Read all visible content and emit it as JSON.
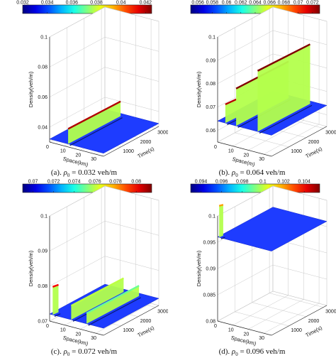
{
  "chart_data": [
    {
      "type": "surface3d",
      "caption_prefix": "(a).",
      "caption_symbol": "ρ",
      "caption_subscript": "0",
      "caption_value": " = 0.032 veh/m",
      "colorbar_ticks": [
        "0.032",
        "0.034",
        "0.036",
        "0.038",
        "0.04",
        "0.042"
      ],
      "colorbar_range": [
        0.032,
        0.0425
      ],
      "z_ticks": [
        "0.04",
        "0.06",
        "0.08",
        "0.1"
      ],
      "z_range": [
        0.03,
        0.1
      ],
      "x_ticks": [
        "0",
        "10",
        "20",
        "30"
      ],
      "y_ticks": [
        "1000",
        "2000",
        "3000"
      ],
      "xlabel": "Space(km)",
      "ylabel": "Time(s)",
      "zlabel": "Density(veh/m)",
      "base_density": 0.032,
      "ridges": [
        {
          "space": 12,
          "time_end": 3000,
          "peak": 0.042
        }
      ]
    },
    {
      "type": "surface3d",
      "caption_prefix": "(b).",
      "caption_symbol": "ρ",
      "caption_subscript": "0",
      "caption_value": " = 0.064 veh/m",
      "colorbar_ticks": [
        "0.056",
        "0.058",
        "0.06",
        "0.062",
        "0.064",
        "0.066",
        "0.068",
        "0.07",
        "0.072"
      ],
      "colorbar_range": [
        0.055,
        0.073
      ],
      "z_ticks": [
        "0.06",
        "0.07",
        "0.08",
        "0.09",
        "0.1"
      ],
      "z_range": [
        0.055,
        0.1
      ],
      "x_ticks": [
        "0",
        "10",
        "20",
        "30"
      ],
      "y_ticks": [
        "1000",
        "2000",
        "3000"
      ],
      "xlabel": "Space(m)",
      "ylabel": "Time(s)",
      "zlabel": "Density(veh/m)",
      "base_density": 0.064,
      "ridges": [
        {
          "space": 5,
          "time_end": 600,
          "peak": 0.072
        },
        {
          "space": 12,
          "time_end": 3000,
          "peak": 0.08
        },
        {
          "space": 26,
          "time_end": 3000,
          "peak": 0.09
        }
      ]
    },
    {
      "type": "surface3d",
      "caption_prefix": "(c).",
      "caption_symbol": "ρ",
      "caption_subscript": "0",
      "caption_value": " = 0.072 veh/m",
      "colorbar_ticks": [
        "0.07",
        "0.072",
        "0.074",
        "0.076",
        "0.078",
        "0.08"
      ],
      "colorbar_range": [
        0.069,
        0.0815
      ],
      "z_ticks": [
        "0.07",
        "0.08",
        "0.09",
        "0.1"
      ],
      "z_range": [
        0.07,
        0.1
      ],
      "x_ticks": [
        "0",
        "10",
        "20",
        "30"
      ],
      "y_ticks": [
        "1000",
        "2000",
        "3000"
      ],
      "xlabel": "Space(km)",
      "ylabel": "Time(s)",
      "zlabel": "Density(veh/m)",
      "base_density": 0.072,
      "ridges": [
        {
          "space": 2,
          "time_end": 300,
          "peak": 0.08
        },
        {
          "space": 14,
          "time_end": 3000,
          "peak": 0.076
        },
        {
          "space": 24,
          "time_end": 3000,
          "peak": 0.075
        }
      ]
    },
    {
      "type": "surface3d",
      "caption_prefix": "(d).",
      "caption_symbol": "ρ",
      "caption_subscript": "0",
      "caption_value": " = 0.096 veh/m",
      "colorbar_ticks": [
        "0.094",
        "0.096",
        "0.098",
        "0.1",
        "0.102",
        "0.104"
      ],
      "colorbar_range": [
        0.093,
        0.1055
      ],
      "z_ticks": [
        "0.08",
        "0.085",
        "0.09",
        "0.095",
        "0.1"
      ],
      "z_range": [
        0.08,
        0.1
      ],
      "x_ticks": [
        "0",
        "10",
        "20",
        "30"
      ],
      "y_ticks": [
        "1000",
        "2000",
        "3000"
      ],
      "xlabel": "Space(km)",
      "ylabel": "Time(s)",
      "zlabel": "Density(veh/m)",
      "base_density": 0.096,
      "ridges": [
        {
          "space": 1,
          "time_end": 200,
          "peak": 0.102
        }
      ]
    }
  ],
  "colors": {
    "surface": "#1e3cff",
    "surface_dark": "#1428c8",
    "ridge_mid": "#20d0ff",
    "ridge_peak": "#ffd000",
    "ridge_max": "#e00000",
    "grid": "#c8c8c8",
    "frame": "#222222"
  }
}
